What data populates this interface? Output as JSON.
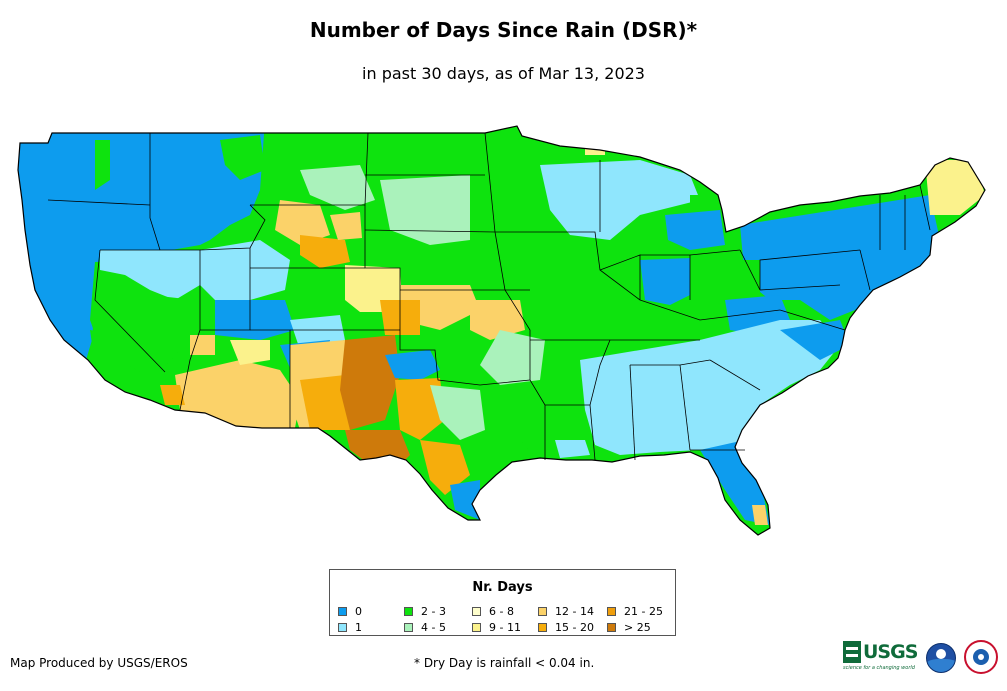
{
  "title": "Number of Days Since Rain (DSR)*",
  "subtitle": "in past 30 days, as of Mar 13, 2023",
  "legend": {
    "title": "Nr. Days",
    "items": [
      {
        "label": "0",
        "color": "#0d9cee"
      },
      {
        "label": "1",
        "color": "#8fe6fd"
      },
      {
        "label": "2 - 3",
        "color": "#0ee30e"
      },
      {
        "label": "4 - 5",
        "color": "#aaf2bb"
      },
      {
        "label": "6 - 8",
        "color": "#fefecc"
      },
      {
        "label": "9 - 11",
        "color": "#fbf28c"
      },
      {
        "label": "12 - 14",
        "color": "#fbd269"
      },
      {
        "label": "15 - 20",
        "color": "#f6ad0c"
      },
      {
        "label": "21 - 25",
        "color": "#ef9e0c"
      },
      {
        "label": "> 25",
        "color": "#ce7a0b"
      }
    ]
  },
  "credit": "Map Produced by USGS/EROS",
  "footnote": "* Dry Day is rainfall < 0.04 in.",
  "logos": {
    "usgs": "USGS",
    "usgs_tagline": "science for a changing world"
  },
  "icons": [
    "usgs-logo",
    "noaa-logo-icon",
    "nws-logo-icon"
  ]
}
